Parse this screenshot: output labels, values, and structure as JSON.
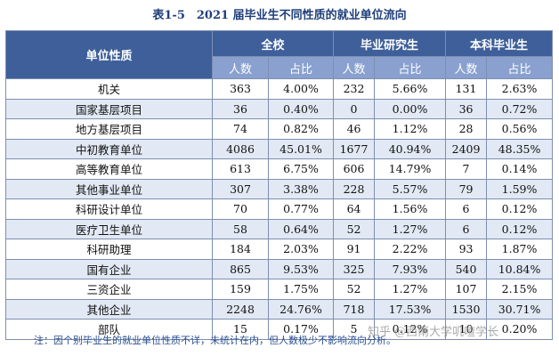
{
  "title": "表1-5　2021 届毕业生不同性质的就业单位流向",
  "header": {
    "unit_type": "单位性质",
    "groups": [
      "全校",
      "毕业研究生",
      "本科毕业生"
    ],
    "sub": [
      "人数",
      "占比",
      "人数",
      "占比",
      "人数",
      "占比"
    ]
  },
  "rows": [
    {
      "name": "机关",
      "all_n": "363",
      "all_p": "4.00%",
      "grad_n": "232",
      "grad_p": "5.66%",
      "ug_n": "131",
      "ug_p": "2.63%"
    },
    {
      "name": "国家基层项目",
      "all_n": "36",
      "all_p": "0.40%",
      "grad_n": "0",
      "grad_p": "0.00%",
      "ug_n": "36",
      "ug_p": "0.72%"
    },
    {
      "name": "地方基层项目",
      "all_n": "74",
      "all_p": "0.82%",
      "grad_n": "46",
      "grad_p": "1.12%",
      "ug_n": "28",
      "ug_p": "0.56%"
    },
    {
      "name": "中初教育单位",
      "all_n": "4086",
      "all_p": "45.01%",
      "grad_n": "1677",
      "grad_p": "40.94%",
      "ug_n": "2409",
      "ug_p": "48.35%"
    },
    {
      "name": "高等教育单位",
      "all_n": "613",
      "all_p": "6.75%",
      "grad_n": "606",
      "grad_p": "14.79%",
      "ug_n": "7",
      "ug_p": "0.14%"
    },
    {
      "name": "其他事业单位",
      "all_n": "307",
      "all_p": "3.38%",
      "grad_n": "228",
      "grad_p": "5.57%",
      "ug_n": "79",
      "ug_p": "1.59%"
    },
    {
      "name": "科研设计单位",
      "all_n": "70",
      "all_p": "0.77%",
      "grad_n": "64",
      "grad_p": "1.56%",
      "ug_n": "6",
      "ug_p": "0.12%"
    },
    {
      "name": "医疗卫生单位",
      "all_n": "58",
      "all_p": "0.64%",
      "grad_n": "52",
      "grad_p": "1.27%",
      "ug_n": "6",
      "ug_p": "0.12%"
    },
    {
      "name": "科研助理",
      "all_n": "184",
      "all_p": "2.03%",
      "grad_n": "91",
      "grad_p": "2.22%",
      "ug_n": "93",
      "ug_p": "1.87%"
    },
    {
      "name": "国有企业",
      "all_n": "865",
      "all_p": "9.53%",
      "grad_n": "325",
      "grad_p": "7.93%",
      "ug_n": "540",
      "ug_p": "10.84%"
    },
    {
      "name": "三资企业",
      "all_n": "159",
      "all_p": "1.75%",
      "grad_n": "52",
      "grad_p": "1.27%",
      "ug_n": "107",
      "ug_p": "2.15%"
    },
    {
      "name": "其他企业",
      "all_n": "2248",
      "all_p": "24.76%",
      "grad_n": "718",
      "grad_p": "17.53%",
      "ug_n": "1530",
      "ug_p": "30.71%"
    },
    {
      "name": "部队",
      "all_n": "15",
      "all_p": "0.17%",
      "grad_n": "5",
      "grad_p": "0.12%",
      "ug_n": "10",
      "ug_p": "0.20%"
    }
  ],
  "note": "注：因个别毕业生的就业单位性质不详，未统计在内，但人数极少不影响流向分析。",
  "watermark": "知乎 @西南大学叽喳学长",
  "colors": {
    "header_dark": "#3e5f99",
    "header_light": "#8aa1cf",
    "row_alt": "#e2e9f4",
    "title": "#1f3f7a"
  }
}
